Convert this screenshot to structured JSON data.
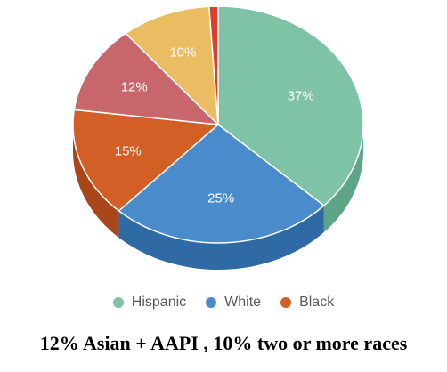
{
  "chart_data": {
    "type": "pie",
    "style": "3d",
    "title": "",
    "slices": [
      {
        "label": "Hispanic",
        "value": 37,
        "display": "37%",
        "color": "#7fc3a6",
        "side": "#5ea486"
      },
      {
        "label": "White",
        "value": 25,
        "display": "25%",
        "color": "#4a8ccb",
        "side": "#2f6aa5"
      },
      {
        "label": "Black",
        "value": 15,
        "display": "15%",
        "color": "#d15f26",
        "side": "#a9461a"
      },
      {
        "label": "",
        "value": 12,
        "display": "12%",
        "color": "#c7676b",
        "side": "#a04e52"
      },
      {
        "label": "",
        "value": 10,
        "display": "10%",
        "color": "#ebbd63",
        "side": "#c79b48"
      },
      {
        "label": "",
        "value": 1,
        "display": "",
        "color": "#d94030",
        "side": "#b33224"
      }
    ],
    "legend": {
      "position": "bottom",
      "entries": [
        {
          "label": "Hispanic",
          "color": "#7fc3a6"
        },
        {
          "label": "White",
          "color": "#4a8ccb"
        },
        {
          "label": "Black",
          "color": "#d15f26"
        }
      ]
    }
  },
  "caption": "12% Asian + AAPI , 10% two or more races"
}
